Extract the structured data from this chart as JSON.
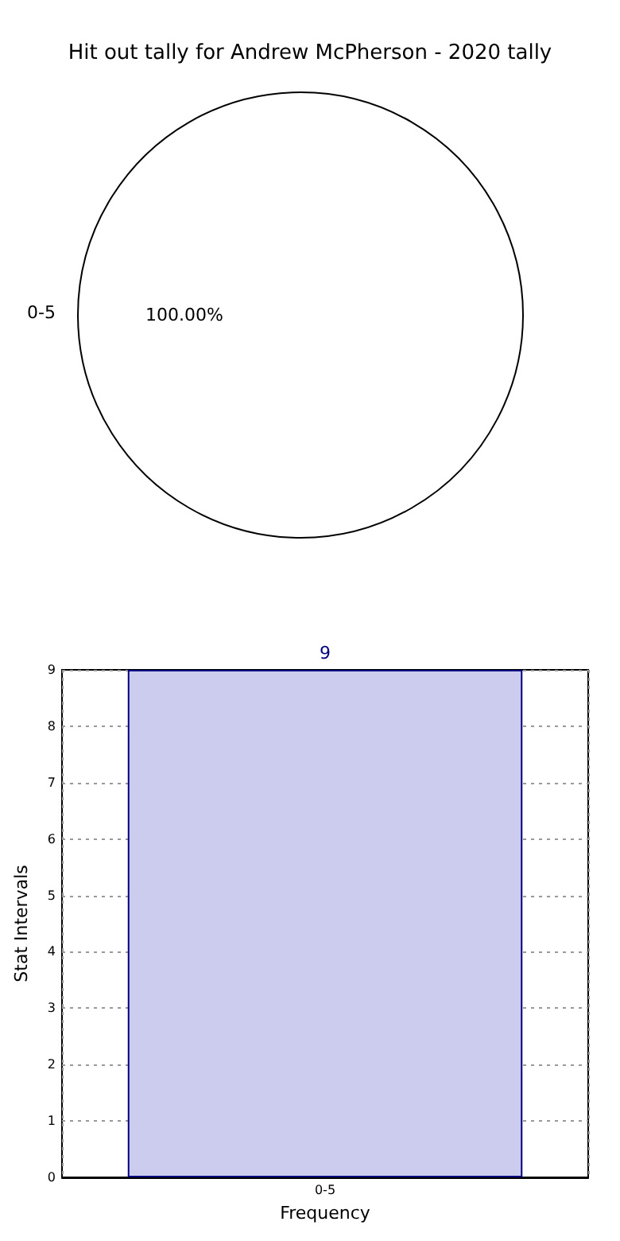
{
  "chart_data": [
    {
      "type": "pie",
      "title": "Hit out tally for Andrew McPherson - 2020 tally",
      "categories": [
        "0-5"
      ],
      "values": [
        100
      ],
      "colors": [
        "#ffffff"
      ],
      "value_labels": [
        "100.00%"
      ]
    },
    {
      "type": "bar",
      "categories": [
        "0-5"
      ],
      "values": [
        9
      ],
      "color": "#ccccee",
      "data_labels": true,
      "ylim": [
        0,
        9
      ],
      "yticks": [
        0,
        1,
        2,
        3,
        4,
        5,
        6,
        7,
        8,
        9
      ],
      "grid": true,
      "xlabel": "Frequency",
      "ylabel": "Stat Intervals"
    }
  ]
}
